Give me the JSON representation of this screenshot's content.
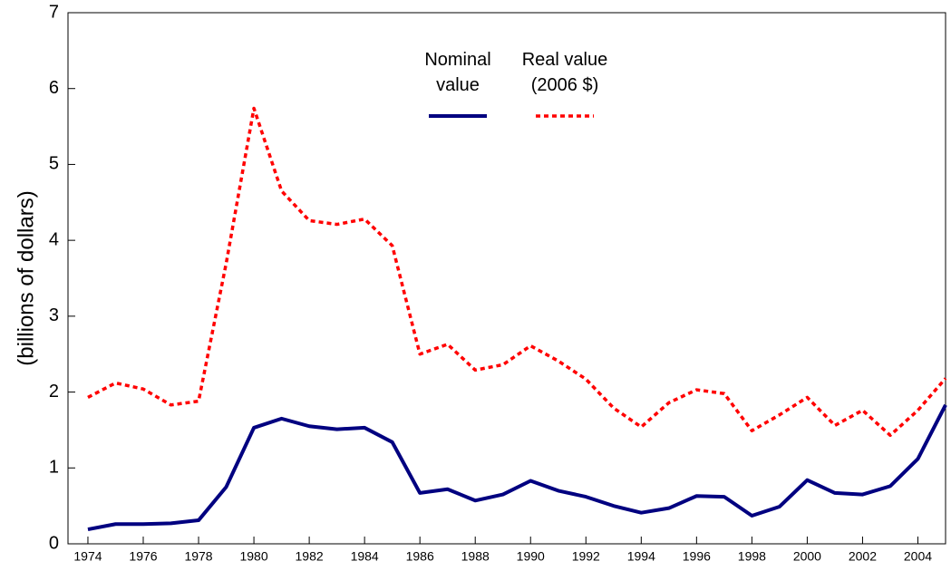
{
  "chart_data": {
    "type": "line",
    "y_label": "(billions of dollars)",
    "x": [
      1974,
      1975,
      1976,
      1977,
      1978,
      1979,
      1980,
      1981,
      1982,
      1983,
      1984,
      1985,
      1986,
      1987,
      1988,
      1989,
      1990,
      1991,
      1992,
      1993,
      1994,
      1995,
      1996,
      1997,
      1998,
      1999,
      2000,
      2001,
      2002,
      2003,
      2004,
      2005
    ],
    "series": [
      {
        "name": "Nominal value",
        "color": "#000080",
        "dash": false,
        "values": [
          0.19,
          0.26,
          0.26,
          0.27,
          0.31,
          0.75,
          1.53,
          1.65,
          1.55,
          1.51,
          1.53,
          1.34,
          0.67,
          0.72,
          0.57,
          0.65,
          0.83,
          0.7,
          0.62,
          0.5,
          0.41,
          0.47,
          0.63,
          0.62,
          0.37,
          0.49,
          0.84,
          0.67,
          0.65,
          0.76,
          1.12,
          1.83
        ]
      },
      {
        "name": "Real value (2006 $)",
        "color": "#ff0000",
        "dash": true,
        "values": [
          1.93,
          2.12,
          2.04,
          1.83,
          1.88,
          3.7,
          5.74,
          4.65,
          4.26,
          4.21,
          4.28,
          3.93,
          2.5,
          2.63,
          2.29,
          2.36,
          2.61,
          2.41,
          2.17,
          1.79,
          1.54,
          1.86,
          2.03,
          1.98,
          1.49,
          1.7,
          1.93,
          1.56,
          1.76,
          1.43,
          1.76,
          2.18
        ]
      }
    ],
    "xlim": [
      1973.28,
      2005
    ],
    "xticks": [
      1974,
      1976,
      1978,
      1980,
      1982,
      1984,
      1986,
      1988,
      1990,
      1992,
      1994,
      1996,
      1998,
      2000,
      2002,
      2004
    ],
    "ylim": [
      0,
      7
    ],
    "yticks": [
      0,
      1,
      2,
      3,
      4,
      5,
      6,
      7
    ],
    "grid": false
  }
}
